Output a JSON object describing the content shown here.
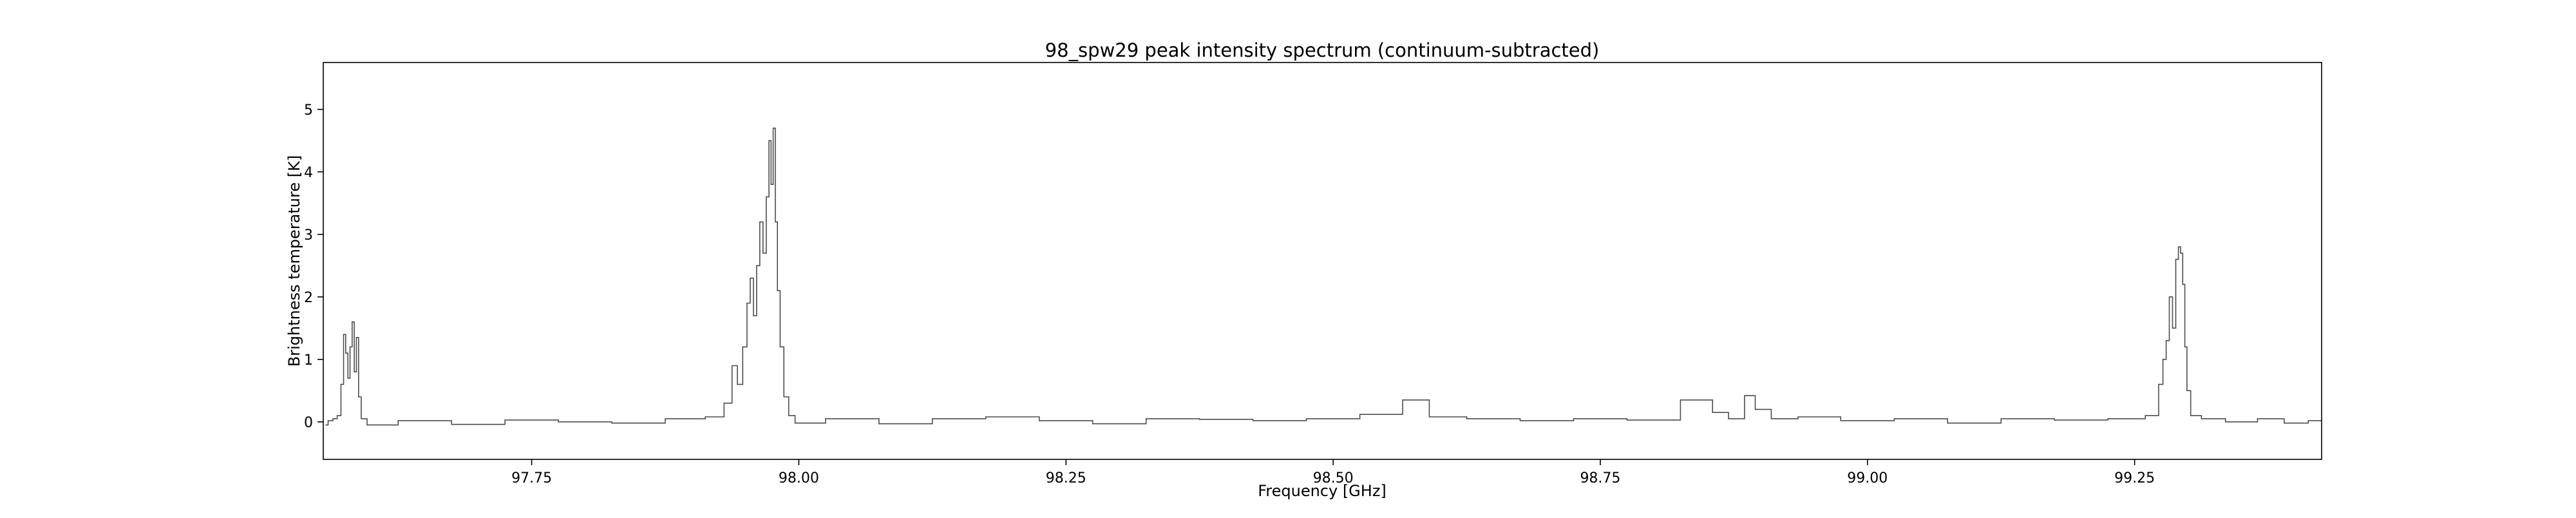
{
  "chart_data": {
    "type": "line",
    "title": "98_spw29 peak intensity spectrum (continuum-subtracted)",
    "xlabel": "Frequency [GHz]",
    "ylabel": "Brightness temperature [K]",
    "xlim": [
      97.555,
      99.425
    ],
    "ylim": [
      -0.6,
      5.75
    ],
    "xticks": [
      97.75,
      98.0,
      98.25,
      98.5,
      98.75,
      99.0,
      99.25
    ],
    "xtick_labels": [
      "97.75",
      "98.00",
      "98.25",
      "98.50",
      "98.75",
      "99.00",
      "99.25"
    ],
    "yticks": [
      0,
      1,
      2,
      3,
      4,
      5
    ],
    "ytick_labels": [
      "0",
      "1",
      "2",
      "3",
      "4",
      "5"
    ],
    "grid": false,
    "line_color": "#4d4d4d",
    "series": [
      {
        "name": "",
        "style": "step",
        "points": [
          [
            97.557,
            -0.05
          ],
          [
            97.562,
            0.02
          ],
          [
            97.566,
            0.05
          ],
          [
            97.57,
            0.1
          ],
          [
            97.573,
            0.6
          ],
          [
            97.575,
            1.4
          ],
          [
            97.577,
            1.1
          ],
          [
            97.579,
            0.7
          ],
          [
            97.581,
            1.2
          ],
          [
            97.583,
            1.6
          ],
          [
            97.585,
            0.8
          ],
          [
            97.587,
            1.35
          ],
          [
            97.589,
            0.4
          ],
          [
            97.592,
            0.05
          ],
          [
            97.6,
            -0.05
          ],
          [
            97.65,
            0.02
          ],
          [
            97.7,
            -0.04
          ],
          [
            97.75,
            0.03
          ],
          [
            97.8,
            0.0
          ],
          [
            97.85,
            -0.02
          ],
          [
            97.9,
            0.05
          ],
          [
            97.925,
            0.08
          ],
          [
            97.935,
            0.3
          ],
          [
            97.94,
            0.9
          ],
          [
            97.945,
            0.6
          ],
          [
            97.95,
            1.2
          ],
          [
            97.953,
            1.9
          ],
          [
            97.956,
            2.3
          ],
          [
            97.959,
            1.7
          ],
          [
            97.962,
            2.5
          ],
          [
            97.965,
            3.2
          ],
          [
            97.968,
            2.7
          ],
          [
            97.971,
            3.6
          ],
          [
            97.973,
            4.5
          ],
          [
            97.975,
            3.8
          ],
          [
            97.977,
            4.7
          ],
          [
            97.979,
            3.2
          ],
          [
            97.981,
            2.1
          ],
          [
            97.984,
            1.2
          ],
          [
            97.988,
            0.4
          ],
          [
            97.993,
            0.1
          ],
          [
            98.0,
            -0.02
          ],
          [
            98.05,
            0.05
          ],
          [
            98.1,
            -0.03
          ],
          [
            98.15,
            0.05
          ],
          [
            98.2,
            0.08
          ],
          [
            98.25,
            0.02
          ],
          [
            98.3,
            -0.03
          ],
          [
            98.35,
            0.05
          ],
          [
            98.4,
            0.04
          ],
          [
            98.45,
            0.02
          ],
          [
            98.5,
            0.05
          ],
          [
            98.55,
            0.12
          ],
          [
            98.58,
            0.35
          ],
          [
            98.6,
            0.08
          ],
          [
            98.65,
            0.05
          ],
          [
            98.7,
            0.02
          ],
          [
            98.75,
            0.05
          ],
          [
            98.8,
            0.03
          ],
          [
            98.85,
            0.35
          ],
          [
            98.86,
            0.15
          ],
          [
            98.88,
            0.05
          ],
          [
            98.89,
            0.42
          ],
          [
            98.9,
            0.2
          ],
          [
            98.92,
            0.05
          ],
          [
            98.95,
            0.08
          ],
          [
            99.0,
            0.02
          ],
          [
            99.05,
            0.05
          ],
          [
            99.1,
            -0.02
          ],
          [
            99.15,
            0.05
          ],
          [
            99.2,
            0.03
          ],
          [
            99.25,
            0.05
          ],
          [
            99.27,
            0.1
          ],
          [
            99.275,
            0.6
          ],
          [
            99.278,
            1.0
          ],
          [
            99.281,
            1.3
          ],
          [
            99.284,
            2.0
          ],
          [
            99.287,
            1.5
          ],
          [
            99.29,
            2.6
          ],
          [
            99.292,
            2.8
          ],
          [
            99.294,
            2.7
          ],
          [
            99.296,
            2.2
          ],
          [
            99.298,
            1.2
          ],
          [
            99.3,
            0.5
          ],
          [
            99.305,
            0.1
          ],
          [
            99.32,
            0.05
          ],
          [
            99.35,
            0.0
          ],
          [
            99.38,
            0.05
          ],
          [
            99.4,
            -0.02
          ],
          [
            99.425,
            0.02
          ]
        ]
      }
    ]
  }
}
